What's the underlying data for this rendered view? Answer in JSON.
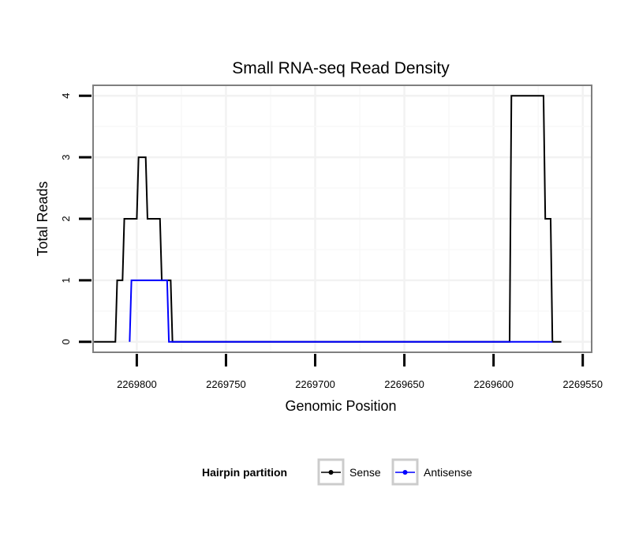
{
  "chart_data": {
    "type": "line",
    "line_shape": "step",
    "title": "Small RNA-seq Read Density",
    "xlabel": "Genomic Position",
    "ylabel": "Total Reads",
    "x_reversed": true,
    "xlim": [
      2269824.5,
      2269545
    ],
    "ylim": [
      -0.17,
      4.17
    ],
    "x_ticks": [
      2269800,
      2269750,
      2269700,
      2269650,
      2269600,
      2269550
    ],
    "x_tick_labels": [
      "2269800",
      "2269750",
      "2269700",
      "2269650",
      "2269600",
      "2269550"
    ],
    "y_ticks": [
      0,
      1,
      2,
      3,
      4
    ],
    "y_tick_labels": [
      "0",
      "1",
      "2",
      "3",
      "4"
    ],
    "grid": true,
    "legend_title": "Hairpin partition",
    "legend_position": "bottom",
    "series": [
      {
        "name": "Sense",
        "color": "#000000",
        "points": [
          [
            2269824,
            0
          ],
          [
            2269812,
            0
          ],
          [
            2269811,
            1
          ],
          [
            2269808,
            1
          ],
          [
            2269807,
            2
          ],
          [
            2269800,
            2
          ],
          [
            2269799,
            3
          ],
          [
            2269795,
            3
          ],
          [
            2269794,
            2
          ],
          [
            2269787,
            2
          ],
          [
            2269786,
            1
          ],
          [
            2269781,
            1
          ],
          [
            2269780,
            0
          ],
          [
            2269591,
            0
          ],
          [
            2269590,
            4
          ],
          [
            2269572,
            4
          ],
          [
            2269571,
            2
          ],
          [
            2269568,
            2
          ],
          [
            2269567,
            0
          ],
          [
            2269562,
            0
          ]
        ]
      },
      {
        "name": "Antisense",
        "color": "#0000ff",
        "points": [
          [
            2269804,
            0
          ],
          [
            2269803,
            1
          ],
          [
            2269783,
            1
          ],
          [
            2269782,
            0
          ],
          [
            2269770,
            0
          ],
          [
            2269591,
            0
          ],
          [
            2269567,
            0
          ]
        ]
      }
    ]
  }
}
